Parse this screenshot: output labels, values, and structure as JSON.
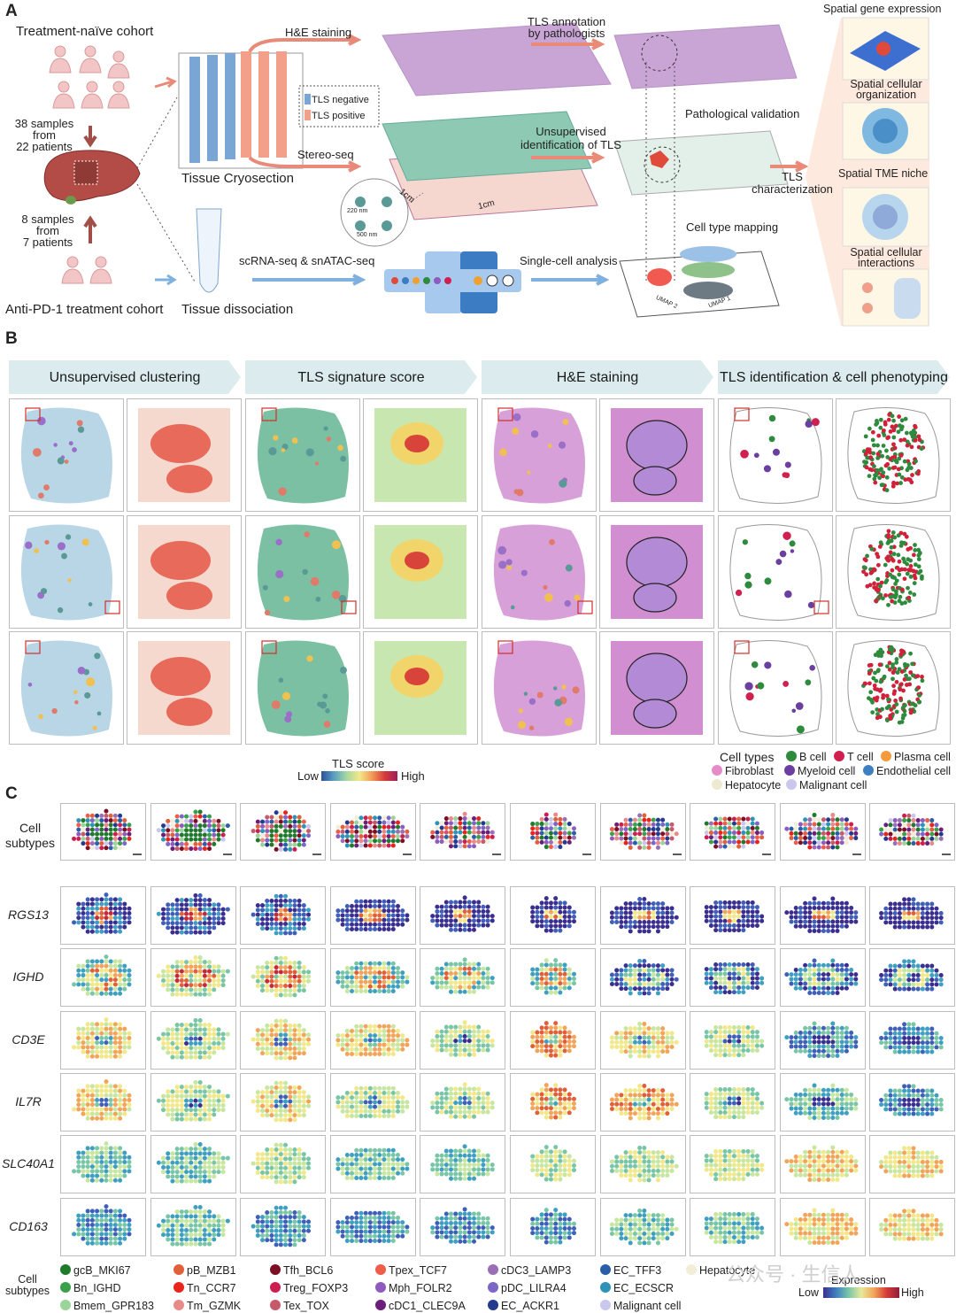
{
  "panels": {
    "a": "A",
    "b": "B",
    "c": "C"
  },
  "panel_a": {
    "naive_cohort": "Treatment-naïve cohort",
    "samples_naive": [
      "38 samples",
      "from",
      "22 patients"
    ],
    "samples_pd1": [
      "8 samples",
      "from",
      "7 patients"
    ],
    "pd1_cohort": "Anti-PD-1 treatment cohort",
    "he_staining": "H&E staining",
    "stereo_seq": "Stereo-seq",
    "tissue_cryosection": "Tissue Cryosection",
    "tls_negative": "TLS negative",
    "tls_positive": "TLS positive",
    "tls_annotation": [
      "TLS annotation",
      "by pathologists"
    ],
    "unsupervised_tls": [
      "Unsupervised",
      "identification of TLS"
    ],
    "pathological_validation": "Pathological validation",
    "tls_characterization": [
      "TLS",
      "characterization"
    ],
    "cell_type_mapping": "Cell type mapping",
    "scrna": "scRNA-seq & snATAC-seq",
    "single_cell": "Single-cell analysis",
    "tissue_dissociation": "Tissue dissociation",
    "chip_sizes": [
      "1cm",
      "1cm"
    ],
    "bead_sizes": [
      "220 nm",
      "500 nm"
    ],
    "umap_axes": [
      "UMAP 2",
      "UMAP 1"
    ],
    "right_labels": [
      "Spatial gene expression",
      "Spatial cellular organization",
      "Spatial TME niche",
      "Spatial cellular interactions"
    ]
  },
  "panel_b": {
    "headers": [
      "Unsupervised clustering",
      "TLS signature score",
      "H&E staining",
      "TLS identification & cell phenotyping"
    ],
    "tls_score_title": "TLS score",
    "low": "Low",
    "high": "High",
    "cell_types_title": "Cell types",
    "cell_types": [
      {
        "name": "B cell",
        "color": "#2e8b3e"
      },
      {
        "name": "T cell",
        "color": "#d0204f"
      },
      {
        "name": "Plasma cell",
        "color": "#f39a3b"
      },
      {
        "name": "Fibroblast",
        "color": "#e58cc8"
      },
      {
        "name": "Myeloid cell",
        "color": "#6b3fa0"
      },
      {
        "name": "Endothelial cell",
        "color": "#3f7fc1"
      },
      {
        "name": "Hepatocyte",
        "color": "#eeead0"
      },
      {
        "name": "Malignant cell",
        "color": "#c9c7ee"
      }
    ]
  },
  "panel_c": {
    "row_label_cells": "Cell subtypes",
    "genes": [
      "RGS13",
      "IGHD",
      "CD3E",
      "IL7R",
      "SLC40A1",
      "CD163"
    ],
    "legend_title": "Cell subtypes",
    "expression_title": "Expression",
    "low": "Low",
    "high": "High",
    "subtypes": [
      {
        "name": "gcB_MKI67",
        "color": "#1f7a2e"
      },
      {
        "name": "Bn_IGHD",
        "color": "#3aa04a"
      },
      {
        "name": "Bmem_GPR183",
        "color": "#9bd49b"
      },
      {
        "name": "pB_MZB1",
        "color": "#e0603a"
      },
      {
        "name": "Tn_CCR7",
        "color": "#e8241c"
      },
      {
        "name": "Tm_GZMK",
        "color": "#e98a8a"
      },
      {
        "name": "Tfh_BCL6",
        "color": "#7b0f24"
      },
      {
        "name": "Treg_FOXP3",
        "color": "#cc1f4f"
      },
      {
        "name": "Tex_TOX",
        "color": "#c75a6a"
      },
      {
        "name": "Tpex_TCF7",
        "color": "#ee5d4a"
      },
      {
        "name": "Mph_FOLR2",
        "color": "#8e5bbf"
      },
      {
        "name": "cDC1_CLEC9A",
        "color": "#6b1f7a"
      },
      {
        "name": "cDC3_LAMP3",
        "color": "#9b6fb6"
      },
      {
        "name": "pDC_LILRA4",
        "color": "#7c66c8"
      },
      {
        "name": "EC_ACKR1",
        "color": "#233a8f"
      },
      {
        "name": "EC_TFF3",
        "color": "#2b5ea8"
      },
      {
        "name": "EC_ECSCR",
        "color": "#2d93b8"
      },
      {
        "name": "Malignant cell",
        "color": "#c9c7ee"
      },
      {
        "name": "Hepatocyte",
        "color": "#f1edd9"
      }
    ],
    "watermark": "公众号 · 生信人"
  }
}
